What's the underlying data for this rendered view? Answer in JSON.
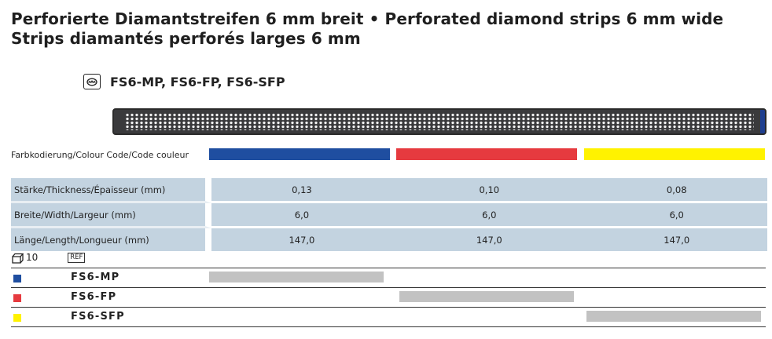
{
  "title": {
    "line1": "Perforierte Diamantstreifen 6 mm breit • Perforated diamond strips 6 mm wide",
    "line2": "Strips diamantés perforés larges 6 mm"
  },
  "product": {
    "icon": "tooth-icon",
    "codes": "FS6-MP, FS6-FP, FS6-SFP"
  },
  "color_code": {
    "label": "Farbkodierung/Colour Code/Code couleur",
    "colors": [
      "#1f4ea0",
      "#e63a3f",
      "#fff200"
    ]
  },
  "specs": [
    {
      "label": "Stärke/Thickness/Épaisseur (mm)",
      "values": [
        "0,13",
        "0,10",
        "0,08"
      ]
    },
    {
      "label": "Breite/Width/Largeur (mm)",
      "values": [
        "6,0",
        "6,0",
        "6,0"
      ]
    },
    {
      "label": "Länge/Length/Longueur (mm)",
      "values": [
        "147,0",
        "147,0",
        "147,0"
      ]
    }
  ],
  "packaging": {
    "icon": "package-icon",
    "count": "10",
    "ref_label": "REF"
  },
  "orders": [
    {
      "code": "FS6-MP",
      "color": "#1f4ea0",
      "column": 0
    },
    {
      "code": "FS6-FP",
      "color": "#e63a3f",
      "column": 1
    },
    {
      "code": "FS6-SFP",
      "color": "#fff200",
      "column": 2
    }
  ]
}
